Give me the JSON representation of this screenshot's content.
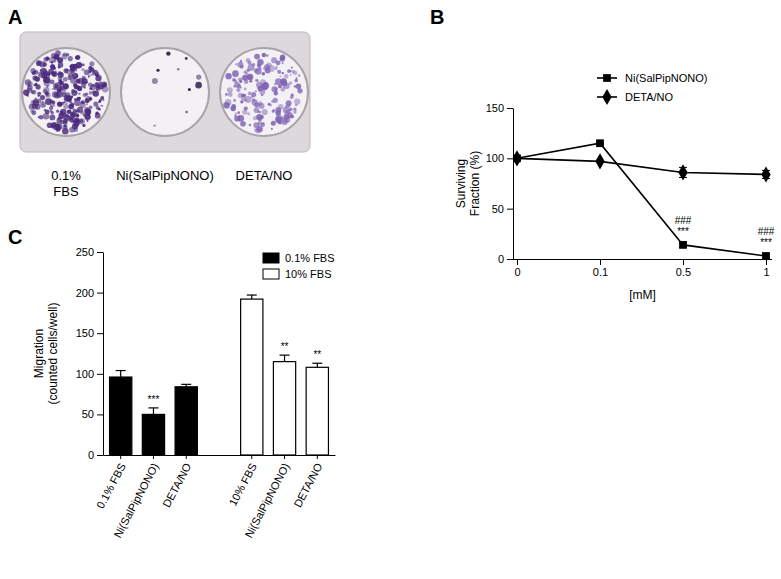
{
  "chart_data": [
    {
      "type": "image",
      "title": "A",
      "categories": [
        "0.1%\nFBS",
        "Ni(SalPipNONO)",
        "DETA/NO"
      ]
    },
    {
      "type": "line",
      "title": "B",
      "x_label": "[mM]",
      "y_label": "Surviving\nFraction (%)",
      "categories": [
        "0",
        "0.1",
        "0.5",
        "1"
      ],
      "ylim": [
        0,
        150
      ],
      "yticks": [
        0,
        50,
        100,
        150
      ],
      "legend": "top-right",
      "series": [
        {
          "name": "Ni(SalPipNONO)",
          "color": "#000000",
          "marker": "square",
          "line_style": "solid",
          "values": [
            100,
            115,
            14,
            3
          ],
          "errors": [
            0,
            1,
            2,
            2
          ],
          "annotations": [
            null,
            null,
            [
              "###",
              "***"
            ],
            [
              "###",
              "***"
            ]
          ]
        },
        {
          "name": "DETA/NO",
          "color": "#000000",
          "marker": "diamond",
          "line_style": "solid",
          "values": [
            100,
            97,
            86,
            84
          ],
          "errors": [
            0,
            1,
            5,
            4
          ]
        }
      ]
    },
    {
      "type": "bar",
      "title": "C",
      "y_label": "Migration\n(counted cells/well)",
      "categories": [
        "0.1% FBS",
        "Ni(SalPipNONO)",
        "DETA/NO",
        null,
        "10% FBS",
        "Ni(SalPipNONO)",
        "DETA/NO"
      ],
      "ylim": [
        0,
        250
      ],
      "yticks": [
        0,
        50,
        100,
        150,
        200,
        250
      ],
      "legend": "top-right",
      "series": [
        {
          "name": "0.1% FBS",
          "color": "#000000",
          "values": [
            96,
            50,
            84,
            null,
            null,
            null,
            null
          ],
          "errors": [
            8,
            8,
            3,
            null,
            null,
            null,
            null
          ],
          "annotations": [
            null,
            "***",
            null,
            null,
            null,
            null,
            null
          ]
        },
        {
          "name": "10% FBS",
          "color": "#ffffff",
          "values": [
            null,
            null,
            null,
            null,
            192,
            115,
            108
          ],
          "errors": [
            null,
            null,
            null,
            null,
            5,
            8,
            5
          ],
          "annotations": [
            null,
            null,
            null,
            null,
            null,
            "**",
            "**"
          ]
        }
      ]
    }
  ]
}
